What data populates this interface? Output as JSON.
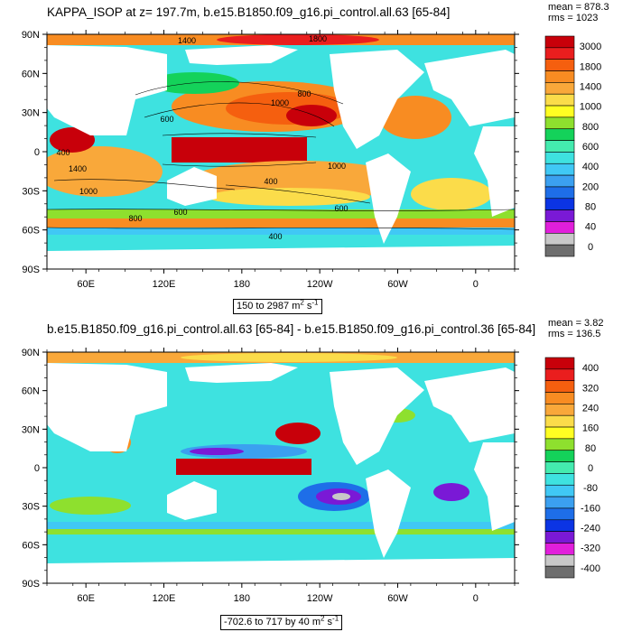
{
  "chart_data": [
    {
      "type": "heatmap",
      "title": "KAPPA_ISOP at z= 197.7m, b.e15.B1850.f09_g16.pi_control.all.63 [65-84]",
      "stats": {
        "mean": "mean = 878.3",
        "rms": "rms = 1023"
      },
      "x_ticks": [
        "60E",
        "120E",
        "180",
        "120W",
        "60W",
        "0"
      ],
      "y_ticks": [
        "90N",
        "60N",
        "30N",
        "0",
        "30S",
        "60S",
        "90S"
      ],
      "colorbar_labels": [
        "3000",
        "1800",
        "1400",
        "1000",
        "800",
        "600",
        "400",
        "200",
        "80",
        "40",
        "0"
      ],
      "colorbar_colors": [
        "#c8000a",
        "#ea1e1e",
        "#f55f0f",
        "#f88c22",
        "#f9a83a",
        "#fbdc4a",
        "#fffe22",
        "#8ee02e",
        "#14d25a",
        "#44ebaf",
        "#3ee2e0",
        "#40c8f5",
        "#3ba0f0",
        "#1e6ee8",
        "#0b34e4",
        "#7a19d6",
        "#e11fdb",
        "#c8c8c8",
        "#6e6e6e"
      ],
      "contour_labels": [
        "1400",
        "1800",
        "1000",
        "800",
        "600",
        "400",
        "1400",
        "1000",
        "800",
        "600",
        "400",
        "1000",
        "600",
        "400"
      ],
      "range_text": "150 to 2987",
      "units_base": "m",
      "units_exp_1": "2",
      "units_mid": " s",
      "units_exp_2": "-1"
    },
    {
      "type": "heatmap",
      "title": "b.e15.B1850.f09_g16.pi_control.all.63 [65-84] - b.e15.B1850.f09_g16.pi_control.36 [65-84]",
      "stats": {
        "mean": "mean = 3.82",
        "rms": "rms = 136.5"
      },
      "x_ticks": [
        "60E",
        "120E",
        "180",
        "120W",
        "60W",
        "0"
      ],
      "y_ticks": [
        "90N",
        "60N",
        "30N",
        "0",
        "30S",
        "60S",
        "90S"
      ],
      "colorbar_labels": [
        "400",
        "320",
        "240",
        "160",
        "80",
        "0",
        "-80",
        "-160",
        "-240",
        "-320",
        "-400"
      ],
      "colorbar_colors": [
        "#c8000a",
        "#ea1e1e",
        "#f55f0f",
        "#f88c22",
        "#f9a83a",
        "#fbdc4a",
        "#fffe22",
        "#8ee02e",
        "#14d25a",
        "#44ebaf",
        "#3ee2e0",
        "#40c8f5",
        "#3ba0f0",
        "#1e6ee8",
        "#0b34e4",
        "#7a19d6",
        "#e11fdb",
        "#c8c8c8",
        "#6e6e6e"
      ],
      "range_text": "-702.6 to 717 by 40",
      "units_base": "m",
      "units_exp_1": "2",
      "units_mid": " s",
      "units_exp_2": "-1"
    }
  ]
}
